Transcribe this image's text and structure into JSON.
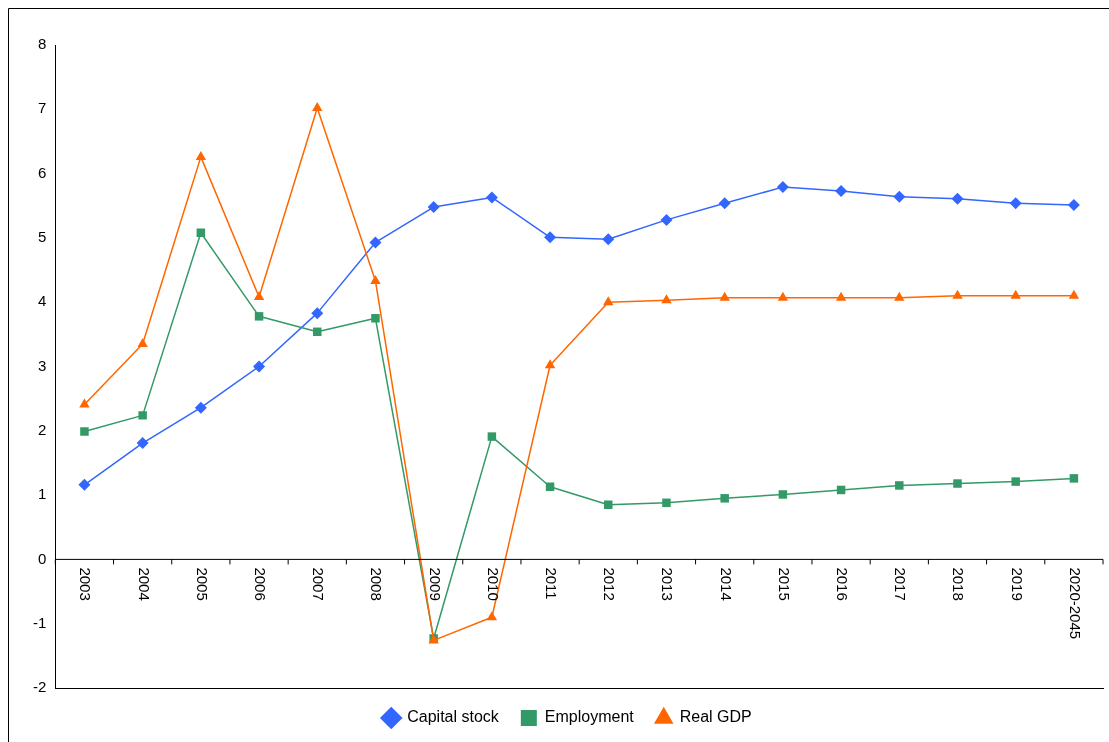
{
  "chart_data": {
    "type": "line",
    "categories": [
      "2003",
      "2004",
      "2005",
      "2006",
      "2007",
      "2008",
      "2009",
      "2010",
      "2011",
      "2012",
      "2013",
      "2014",
      "2015",
      "2016",
      "2017",
      "2018",
      "2019",
      "2020-2045"
    ],
    "series": [
      {
        "name": "Capital stock",
        "color": "#3366ff",
        "marker": "diamond",
        "values": [
          1.16,
          1.81,
          2.36,
          3.0,
          3.83,
          4.93,
          5.48,
          5.63,
          5.01,
          4.98,
          5.28,
          5.54,
          5.79,
          5.73,
          5.64,
          5.61,
          5.54,
          5.51
        ]
      },
      {
        "name": "Employment",
        "color": "#339966",
        "marker": "square",
        "values": [
          1.99,
          2.24,
          5.08,
          3.78,
          3.54,
          3.75,
          -1.23,
          1.91,
          1.13,
          0.85,
          0.88,
          0.95,
          1.01,
          1.08,
          1.15,
          1.18,
          1.21,
          1.26
        ]
      },
      {
        "name": "Real GDP",
        "color": "#ff6600",
        "marker": "triangle",
        "values": [
          2.41,
          3.35,
          6.26,
          4.08,
          7.02,
          4.33,
          -1.26,
          -0.9,
          3.02,
          4.0,
          4.03,
          4.07,
          4.07,
          4.07,
          4.07,
          4.1,
          4.1,
          4.1
        ]
      }
    ],
    "ylim": [
      -2,
      8
    ],
    "yticks": [
      -2,
      -1,
      0,
      1,
      2,
      3,
      4,
      5,
      6,
      7,
      8
    ],
    "grid": false,
    "legend": "bottom",
    "line_style": "solid"
  }
}
